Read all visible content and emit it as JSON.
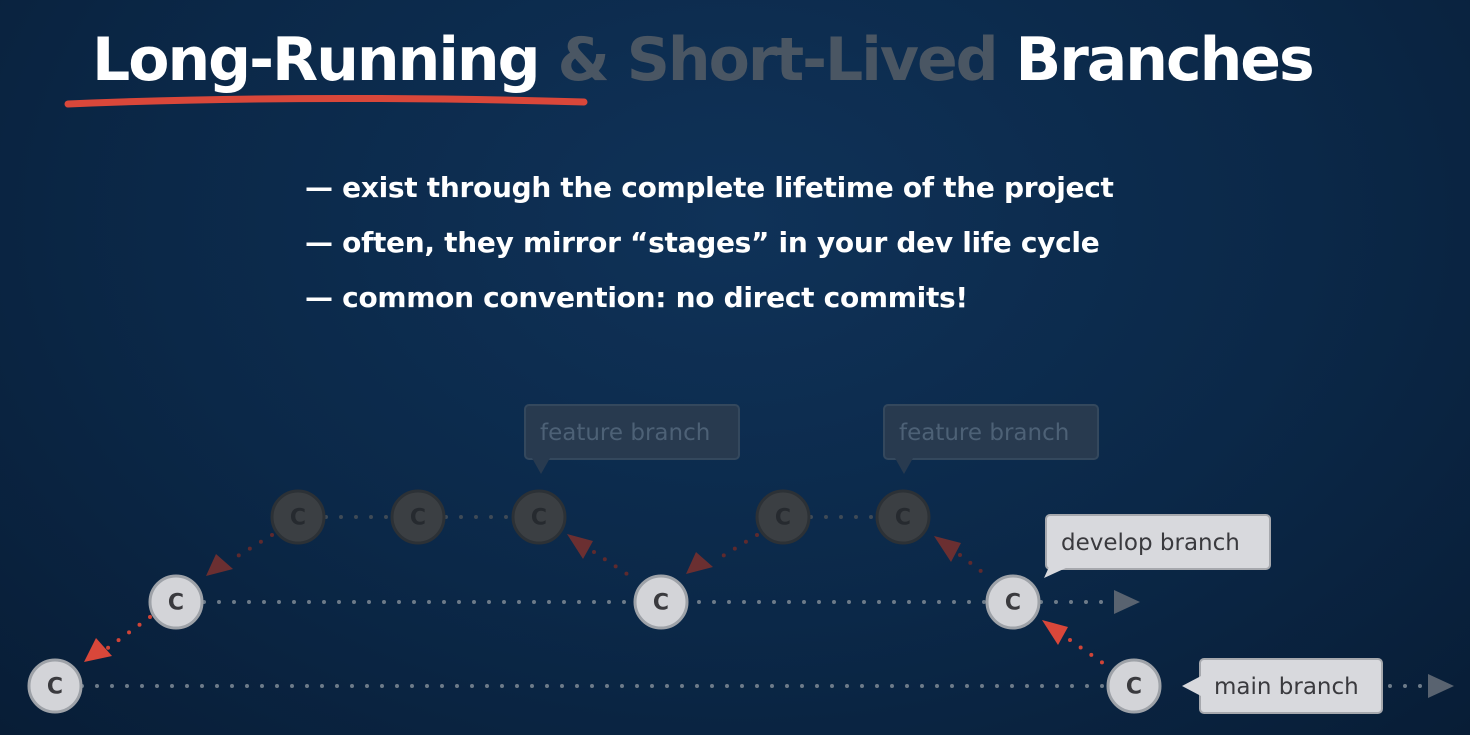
{
  "title": {
    "part1": "Long-Running",
    "part2": "& Short-Lived",
    "part3": "Branches"
  },
  "bullets": [
    "— exist through the complete lifetime of the project",
    "— often, they mirror “stages” in your dev life cycle",
    "— common convention: no direct commits!"
  ],
  "diagram": {
    "commit_glyph": "C",
    "labels": {
      "feature_1": "feature branch",
      "feature_2": "feature branch",
      "develop": "develop branch",
      "main": "main branch"
    }
  },
  "colors": {
    "background": "#0b2848",
    "accent": "#d9473a",
    "dim_text": "#4a5663",
    "commit_bright": "#d3d4d8",
    "commit_dim": "#3b3f43"
  }
}
